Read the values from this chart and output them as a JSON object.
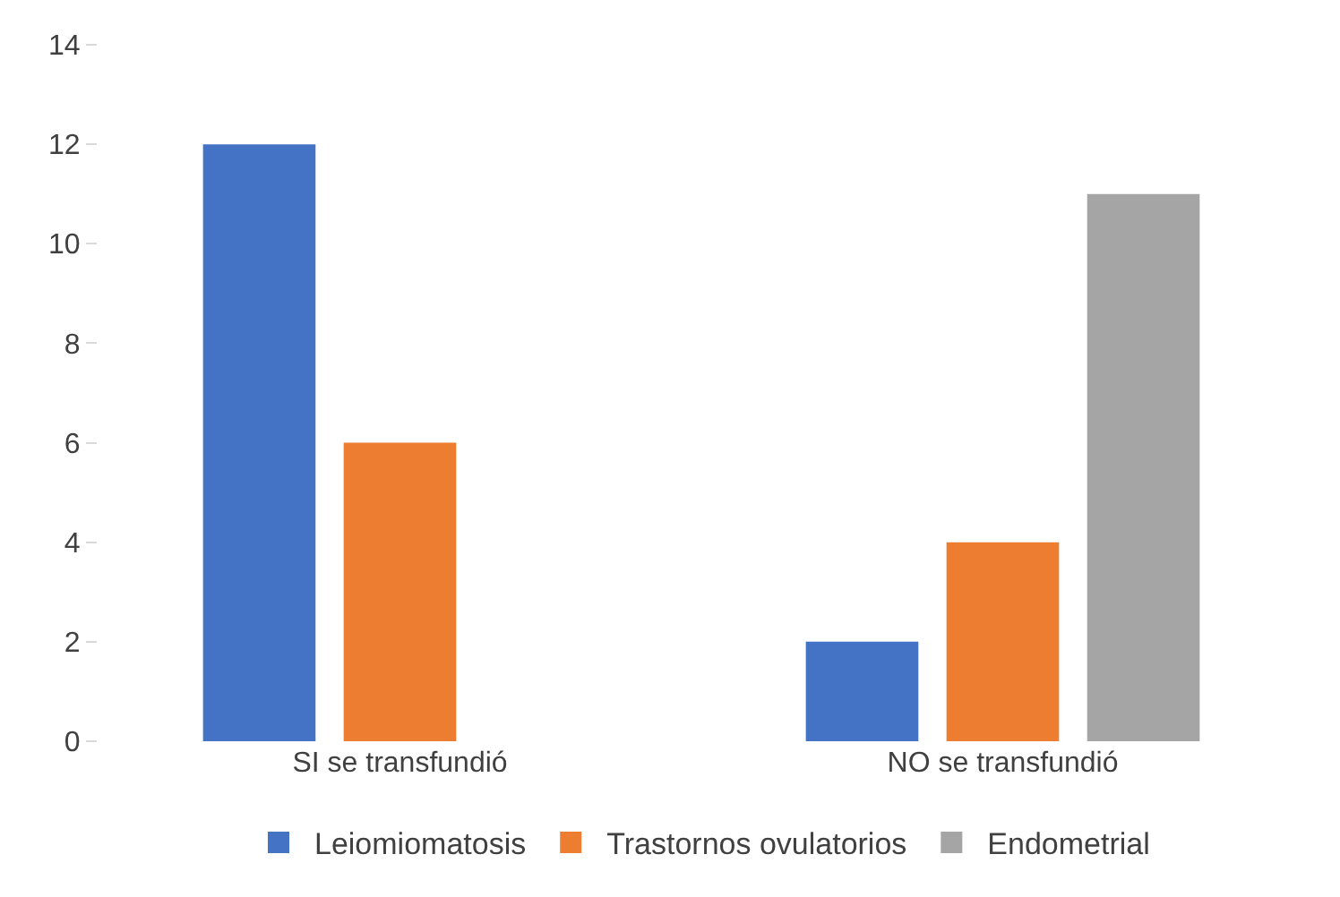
{
  "chart_data": {
    "type": "bar",
    "categories": [
      "SI se transfundió",
      "NO se transfundió"
    ],
    "series": [
      {
        "name": "Leiomiomatosis",
        "color": "#4472c4",
        "values": [
          12,
          2
        ]
      },
      {
        "name": "Trastornos ovulatorios",
        "color": "#ed7d31",
        "values": [
          6,
          4
        ]
      },
      {
        "name": "Endometrial",
        "color": "#a5a5a5",
        "values": [
          0,
          11
        ]
      }
    ],
    "ylim": [
      0,
      14
    ],
    "yticks": [
      0,
      2,
      4,
      6,
      8,
      10,
      12,
      14
    ],
    "grid": false,
    "legend": "bottom"
  }
}
